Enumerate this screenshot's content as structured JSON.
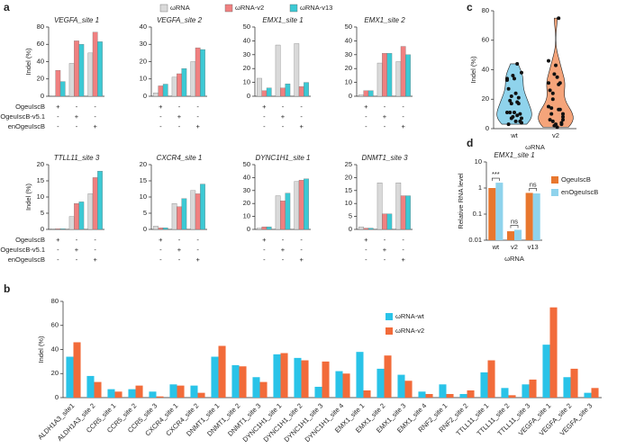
{
  "panel_labels": [
    "a",
    "b",
    "c",
    "d"
  ],
  "chart_data": [
    {
      "type": "bar",
      "title": "VEGFA_site 1",
      "y_label": "Indel (%)",
      "ylim": [
        0,
        80
      ],
      "yticks": [
        0,
        20,
        40,
        60,
        80
      ],
      "condition_rows": [
        "OgeuIscB",
        "OgeuIscB-v5.1",
        "enOgeuIscB"
      ],
      "condition_marks": [
        [
          "+",
          "-",
          "-"
        ],
        [
          "-",
          "+",
          "-"
        ],
        [
          "-",
          "-",
          "+"
        ]
      ],
      "series": [
        {
          "name": "ωRNA",
          "color": "#d9d9d9",
          "values": [
            0.5,
            38,
            50
          ]
        },
        {
          "name": "ωRNA-v2",
          "color": "#f08080",
          "values": [
            30,
            64,
            74
          ]
        },
        {
          "name": "ωRNA-v13",
          "color": "#3cc9d4",
          "values": [
            17,
            60,
            63
          ]
        }
      ]
    },
    {
      "type": "bar",
      "title": "VEGFA_site 2",
      "ylim": [
        0,
        40
      ],
      "yticks": [
        0,
        10,
        20,
        30,
        40
      ],
      "condition_marks": [
        [
          "+",
          "-",
          "-"
        ],
        [
          "-",
          "+",
          "-"
        ],
        [
          "-",
          "-",
          "+"
        ]
      ],
      "series": [
        {
          "name": "ωRNA",
          "color": "#d9d9d9",
          "values": [
            2,
            11,
            20
          ]
        },
        {
          "name": "ωRNA-v2",
          "color": "#f08080",
          "values": [
            6,
            13,
            28
          ]
        },
        {
          "name": "ωRNA-v13",
          "color": "#3cc9d4",
          "values": [
            7,
            16,
            27
          ]
        }
      ]
    },
    {
      "type": "bar",
      "title": "EMX1_site 1",
      "ylim": [
        0,
        50
      ],
      "yticks": [
        0,
        10,
        20,
        30,
        40,
        50
      ],
      "condition_marks": [
        [
          "+",
          "-",
          "-"
        ],
        [
          "-",
          "+",
          "-"
        ],
        [
          "-",
          "-",
          "+"
        ]
      ],
      "series": [
        {
          "name": "ωRNA",
          "color": "#d9d9d9",
          "values": [
            13,
            37,
            38
          ]
        },
        {
          "name": "ωRNA-v2",
          "color": "#f08080",
          "values": [
            4,
            6,
            7
          ]
        },
        {
          "name": "ωRNA-v13",
          "color": "#3cc9d4",
          "values": [
            6,
            9,
            10
          ]
        }
      ]
    },
    {
      "type": "bar",
      "title": "EMX1_site 2",
      "ylim": [
        0,
        50
      ],
      "yticks": [
        0,
        10,
        20,
        30,
        40,
        50
      ],
      "condition_marks": [
        [
          "+",
          "-",
          "-"
        ],
        [
          "-",
          "+",
          "-"
        ],
        [
          "-",
          "-",
          "+"
        ]
      ],
      "series": [
        {
          "name": "ωRNA",
          "color": "#d9d9d9",
          "values": [
            1,
            24,
            25
          ]
        },
        {
          "name": "ωRNA-v2",
          "color": "#f08080",
          "values": [
            4,
            31,
            36
          ]
        },
        {
          "name": "ωRNA-v13",
          "color": "#3cc9d4",
          "values": [
            4,
            31,
            30
          ]
        }
      ]
    },
    {
      "type": "bar",
      "title": "TTLL11_site 3",
      "ylim": [
        0,
        20
      ],
      "yticks": [
        0,
        5,
        10,
        15,
        20
      ],
      "y_label": "Indel (%)",
      "condition_rows": [
        "OgeuIscB",
        "OgeuIscB-v5.1",
        "enOgeuIscB"
      ],
      "condition_marks": [
        [
          "+",
          "-",
          "-"
        ],
        [
          "-",
          "+",
          "-"
        ],
        [
          "-",
          "-",
          "+"
        ]
      ],
      "series": [
        {
          "name": "ωRNA",
          "color": "#d9d9d9",
          "values": [
            0.2,
            4,
            11
          ]
        },
        {
          "name": "ωRNA-v2",
          "color": "#f08080",
          "values": [
            0.2,
            8,
            16
          ]
        },
        {
          "name": "ωRNA-v13",
          "color": "#3cc9d4",
          "values": [
            0.2,
            8.5,
            18
          ]
        }
      ]
    },
    {
      "type": "bar",
      "title": "CXCR4_site 1",
      "ylim": [
        0,
        20
      ],
      "yticks": [
        0,
        5,
        10,
        15,
        20
      ],
      "condition_marks": [
        [
          "+",
          "-",
          "-"
        ],
        [
          "-",
          "+",
          "-"
        ],
        [
          "-",
          "-",
          "+"
        ]
      ],
      "series": [
        {
          "name": "ωRNA",
          "color": "#d9d9d9",
          "values": [
            1,
            8,
            12
          ]
        },
        {
          "name": "ωRNA-v2",
          "color": "#f08080",
          "values": [
            0.5,
            7,
            11
          ]
        },
        {
          "name": "ωRNA-v13",
          "color": "#3cc9d4",
          "values": [
            0.5,
            9.5,
            14
          ]
        }
      ]
    },
    {
      "type": "bar",
      "title": "DYNC1H1_site 1",
      "ylim": [
        0,
        50
      ],
      "yticks": [
        0,
        10,
        20,
        30,
        40,
        50
      ],
      "condition_marks": [
        [
          "+",
          "-",
          "-"
        ],
        [
          "-",
          "+",
          "-"
        ],
        [
          "-",
          "-",
          "+"
        ]
      ],
      "series": [
        {
          "name": "ωRNA",
          "color": "#d9d9d9",
          "values": [
            1,
            26,
            37
          ]
        },
        {
          "name": "ωRNA-v2",
          "color": "#f08080",
          "values": [
            2,
            22,
            38
          ]
        },
        {
          "name": "ωRNA-v13",
          "color": "#3cc9d4",
          "values": [
            2,
            28,
            39
          ]
        }
      ]
    },
    {
      "type": "bar",
      "title": "DNMT1_site 3",
      "ylim": [
        0,
        25
      ],
      "yticks": [
        0,
        5,
        10,
        15,
        20,
        25
      ],
      "condition_marks": [
        [
          "+",
          "-",
          "-"
        ],
        [
          "-",
          "+",
          "-"
        ],
        [
          "-",
          "-",
          "+"
        ]
      ],
      "series": [
        {
          "name": "ωRNA",
          "color": "#d9d9d9",
          "values": [
            1,
            18,
            18
          ]
        },
        {
          "name": "ωRNA-v2",
          "color": "#f08080",
          "values": [
            0.5,
            6,
            13
          ]
        },
        {
          "name": "ωRNA-v13",
          "color": "#3cc9d4",
          "values": [
            0.5,
            6,
            13
          ]
        }
      ]
    },
    {
      "type": "bar",
      "y_label": "Indel (%)",
      "ylim": [
        0,
        80
      ],
      "yticks": [
        0,
        20,
        40,
        60,
        80
      ],
      "categories": [
        "ALDH1A3_site1",
        "ALDH1A3_site 2",
        "CCR5_site 1",
        "CCR5_site 2",
        "CCR5_site 3",
        "CXCR4_site 1",
        "CXCR4_site 2",
        "DNMT1_site 1",
        "DNMT1_site 2",
        "DNMT1_site 3",
        "DYNC1H1_site 1",
        "DYNC1H1_site 2",
        "DYNC1H1_site 3",
        "DYNC1H1_site 4",
        "EMX1_site 1",
        "EMX1_site 2",
        "EMX1_site 3",
        "EMX1_site 4",
        "RNF2_site 1",
        "RNF2_site 2",
        "TTLL11_site 1",
        "TTLL11_site 2",
        "TTLL11_site 3",
        "VEGFA_site 1",
        "VEGFA_site 2",
        "VEGFA_site 3"
      ],
      "series": [
        {
          "name": "ωRNA-wt",
          "color": "#29c3e8",
          "values": [
            34,
            18,
            7,
            7,
            5,
            11,
            10,
            34,
            27,
            17,
            36,
            33,
            9,
            22,
            38,
            24,
            19,
            5,
            11,
            3,
            21,
            8,
            11,
            44,
            17,
            4
          ]
        },
        {
          "name": "ωRNA-v2",
          "color": "#f26b3a",
          "values": [
            46,
            13,
            5,
            10,
            1,
            10,
            4,
            43,
            26,
            13,
            37,
            31,
            30,
            20,
            6,
            35,
            14,
            3,
            3,
            6,
            31,
            2,
            15,
            75,
            24,
            8
          ]
        }
      ]
    },
    {
      "type": "violin",
      "y_label": "Indel (%)",
      "x_label": "ωRNA",
      "ylim": [
        0,
        80
      ],
      "yticks": [
        0,
        20,
        40,
        60,
        80
      ],
      "categories": [
        "wt",
        "v2"
      ],
      "colors": [
        "#8fd3ec",
        "#f5a47a"
      ],
      "points": [
        [
          34,
          18,
          7,
          7,
          5,
          11,
          10,
          34,
          27,
          17,
          36,
          33,
          9,
          22,
          38,
          24,
          19,
          5,
          11,
          3,
          21,
          8,
          11,
          44,
          17,
          4
        ],
        [
          46,
          13,
          5,
          10,
          1,
          10,
          4,
          43,
          26,
          13,
          37,
          31,
          30,
          20,
          6,
          35,
          14,
          3,
          3,
          6,
          31,
          2,
          15,
          75,
          24,
          8
        ]
      ]
    },
    {
      "type": "bar",
      "log_scale": true,
      "title": "EMX1_site 1",
      "y_label": "Relative RNA level",
      "x_label": "ωRNA",
      "ylim": [
        0.01,
        10
      ],
      "yticks": [
        0.01,
        0.1,
        1,
        10
      ],
      "categories": [
        "wt",
        "v2",
        "v13"
      ],
      "annotations": [
        "***",
        "ns",
        "ns"
      ],
      "series": [
        {
          "name": "OgeuIscB",
          "color": "#e8772e",
          "values": [
            1,
            0.022,
            0.65
          ]
        },
        {
          "name": "enOgeuIscB",
          "color": "#8fd3ec",
          "values": [
            1.6,
            0.025,
            0.62
          ]
        }
      ]
    }
  ]
}
